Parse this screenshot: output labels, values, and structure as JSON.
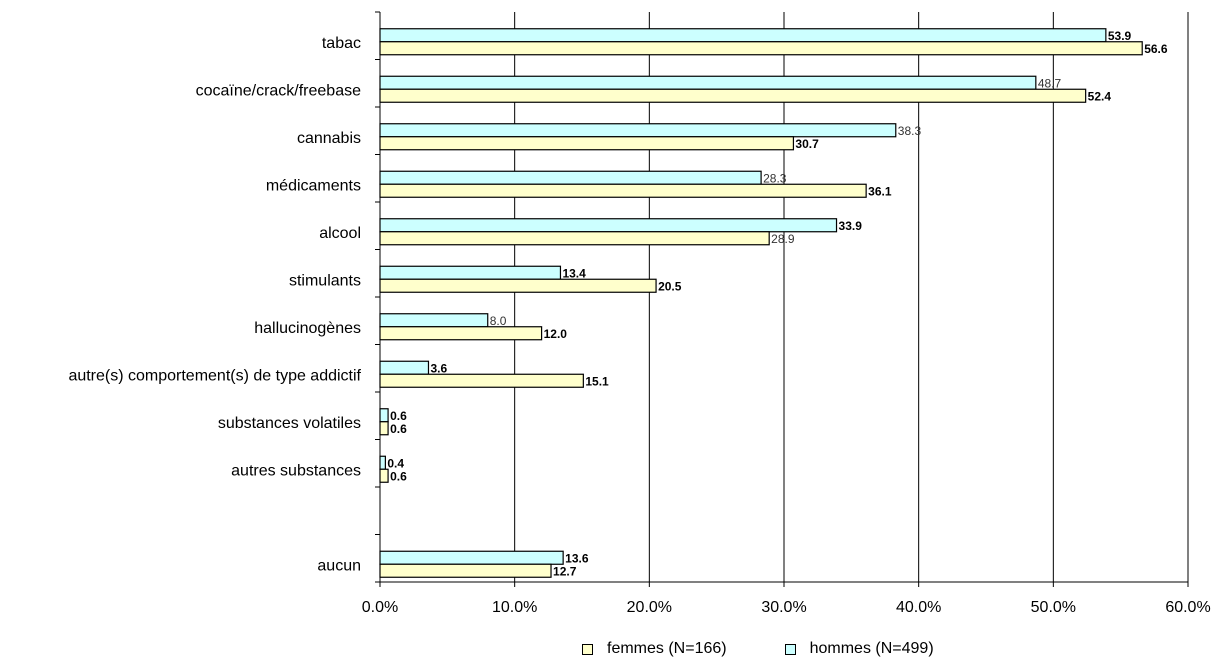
{
  "chart_data": {
    "type": "bar",
    "orientation": "horizontal",
    "categories": [
      "tabac",
      "cocaïne/crack/freebase",
      "cannabis",
      "médicaments",
      "alcool",
      "stimulants",
      "hallucinogènes",
      "autre(s) comportement(s) de type addictif",
      "substances volatiles",
      "autres substances",
      "aucun"
    ],
    "series": [
      {
        "name": "hommes (N=499)",
        "color": "#ccffff",
        "values": [
          53.9,
          48.7,
          38.3,
          28.3,
          33.9,
          13.4,
          8.0,
          3.6,
          0.6,
          0.4,
          13.6
        ],
        "labels": [
          "53.9",
          "48.7",
          "38.3",
          "28.3",
          "33.9",
          "13.4",
          "8.0",
          "3.6",
          "0.6",
          "0.4",
          "13.6"
        ],
        "label_bold": [
          true,
          false,
          false,
          false,
          true,
          true,
          false,
          true,
          true,
          true,
          true
        ]
      },
      {
        "name": "femmes (N=166)",
        "color": "#ffffcc",
        "values": [
          56.6,
          52.4,
          30.7,
          36.1,
          28.9,
          20.5,
          12.0,
          15.1,
          0.6,
          0.6,
          12.7
        ],
        "labels": [
          "56.6",
          "52.4",
          "30.7",
          "36.1",
          "28.9",
          "20.5",
          "12.0",
          "15.1",
          "0.6",
          "0.6",
          "12.7"
        ],
        "label_bold": [
          true,
          true,
          true,
          true,
          false,
          true,
          true,
          true,
          true,
          true,
          true
        ]
      }
    ],
    "xlim": [
      0,
      60
    ],
    "xticks": [
      "0.0%",
      "10.0%",
      "20.0%",
      "30.0%",
      "40.0%",
      "50.0%",
      "60.0%"
    ],
    "grid": "vertical",
    "legend_position": "bottom",
    "legend_order": [
      "femmes (N=166)",
      "hommes (N=499)"
    ]
  }
}
